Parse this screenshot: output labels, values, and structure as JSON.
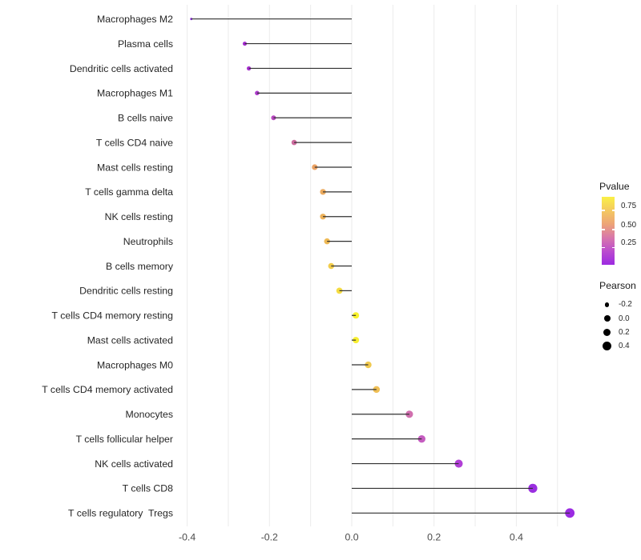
{
  "chart_data": {
    "type": "lollipop",
    "orientation": "horizontal",
    "title": "",
    "xlabel": "",
    "ylabel": "",
    "x_ticks": [
      "-0.4",
      "-0.2",
      "0.0",
      "0.2",
      "0.4"
    ],
    "x_tick_values": [
      -0.4,
      -0.2,
      0.0,
      0.2,
      0.4
    ],
    "xlim": [
      -0.44,
      0.57
    ],
    "grid": "vertical-only",
    "grid_step": 0.1,
    "grid_range": [
      -0.4,
      0.5
    ],
    "points": [
      {
        "label": "Macrophages M2",
        "pearson": -0.39,
        "pvalue": 0.05,
        "color": "#8929dd"
      },
      {
        "label": "Plasma cells",
        "pearson": -0.26,
        "pvalue": 0.12,
        "color": "#a52ed1"
      },
      {
        "label": "Dendritic cells activated",
        "pearson": -0.25,
        "pvalue": 0.13,
        "color": "#a72fd0"
      },
      {
        "label": "Macrophages M1",
        "pearson": -0.23,
        "pvalue": 0.16,
        "color": "#ad3bcb"
      },
      {
        "label": "B cells naive",
        "pearson": -0.19,
        "pvalue": 0.24,
        "color": "#b849c0"
      },
      {
        "label": "T cells CD4 naive",
        "pearson": -0.14,
        "pvalue": 0.39,
        "color": "#cc6b9e"
      },
      {
        "label": "Mast cells resting",
        "pearson": -0.09,
        "pvalue": 0.6,
        "color": "#eba263"
      },
      {
        "label": "T cells gamma delta",
        "pearson": -0.07,
        "pvalue": 0.63,
        "color": "#ecab5e"
      },
      {
        "label": "NK cells resting",
        "pearson": -0.07,
        "pvalue": 0.65,
        "color": "#edb25a"
      },
      {
        "label": "Neutrophils",
        "pearson": -0.06,
        "pvalue": 0.68,
        "color": "#eeb955"
      },
      {
        "label": "B cells memory",
        "pearson": -0.05,
        "pvalue": 0.76,
        "color": "#f2cd4b"
      },
      {
        "label": "Dendritic cells resting",
        "pearson": -0.03,
        "pvalue": 0.84,
        "color": "#f5dc42"
      },
      {
        "label": "T cells CD4 memory resting",
        "pearson": 0.01,
        "pvalue": 0.96,
        "color": "#f8f22d"
      },
      {
        "label": "Mast cells activated",
        "pearson": 0.01,
        "pvalue": 0.94,
        "color": "#f8ef32"
      },
      {
        "label": "Macrophages M0",
        "pearson": 0.04,
        "pvalue": 0.74,
        "color": "#f0c94f"
      },
      {
        "label": "T cells CD4 memory activated",
        "pearson": 0.06,
        "pvalue": 0.67,
        "color": "#efbf55"
      },
      {
        "label": "Monocytes",
        "pearson": 0.14,
        "pvalue": 0.43,
        "color": "#d06fae"
      },
      {
        "label": "T cells follicular helper",
        "pearson": 0.17,
        "pvalue": 0.34,
        "color": "#c55cc0"
      },
      {
        "label": "NK cells activated",
        "pearson": 0.26,
        "pvalue": 0.18,
        "color": "#b13fd6"
      },
      {
        "label": "T cells CD8",
        "pearson": 0.44,
        "pvalue": 0.08,
        "color": "#9a2fe0"
      },
      {
        "label": "T cells regulatory  Tregs",
        "pearson": 0.53,
        "pvalue": 0.06,
        "color": "#9b2be2"
      }
    ],
    "stem_color": "#303030",
    "gridline_color": "#ebebeb"
  },
  "legends": {
    "pvalue": {
      "title": "Pvalue",
      "ticks": [
        {
          "label": "0.75"
        },
        {
          "label": "0.50"
        },
        {
          "label": "0.25"
        }
      ],
      "gradient_bottom_to_top": [
        "#9c2ae1",
        "#bb4cce",
        "#d877ab",
        "#eda477",
        "#f4c960",
        "#faf045"
      ]
    },
    "pearson": {
      "title": "Pearson",
      "items": [
        {
          "label": "-0.2",
          "value": -0.2
        },
        {
          "label": "0.0",
          "value": 0.0
        },
        {
          "label": "0.2",
          "value": 0.2
        },
        {
          "label": "0.4",
          "value": 0.4
        }
      ],
      "dot_color": "#000000"
    }
  }
}
